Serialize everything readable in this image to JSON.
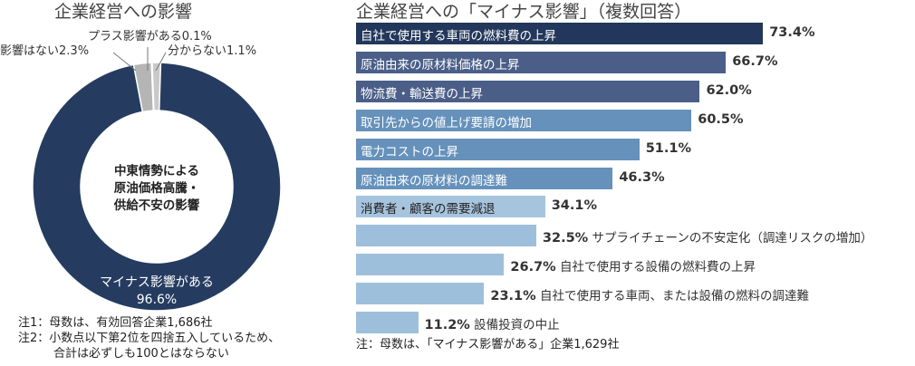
{
  "chart_data": [
    {
      "type": "pie",
      "title": "企業経営への影響",
      "center_label": [
        "中東情勢による",
        "原油価格高騰・",
        "供給不安の影響"
      ],
      "slices": [
        {
          "label": "マイナス影響がある",
          "value": 96.6,
          "display": "96.6%",
          "color": "#253c60"
        },
        {
          "label": "影響はない",
          "value": 2.3,
          "display": "2.3%",
          "color": "#b5b5b5"
        },
        {
          "label": "プラス影響がある",
          "value": 0.1,
          "display": "0.1%",
          "color": "#999999"
        },
        {
          "label": "分からない",
          "value": 1.1,
          "display": "1.1%",
          "color": "#c9c9c9"
        }
      ],
      "notes": [
        "注1：母数は、有効回答企業1,686社",
        "注2：小数点以下第2位を四捨五入しているため、",
        "合計は必ずしも100とはならない"
      ]
    },
    {
      "type": "bar",
      "orientation": "horizontal",
      "title": "企業経営への「マイナス影響」（複数回答）",
      "categories": [
        "自社で使用する車両の燃料費の上昇",
        "原油由来の原材料価格の上昇",
        "物流費・輸送費の上昇",
        "取引先からの値上げ要請の増加",
        "電力コストの上昇",
        "原油由来の原材料の調達難",
        "消費者・顧客の需要減退",
        "サプライチェーンの不安定化（調達リスクの増加）",
        "自社で使用する設備の燃料費の上昇",
        "自社で使用する車両、または設備の燃料の調達難",
        "設備投資の中止"
      ],
      "values": [
        73.4,
        66.7,
        62.0,
        60.5,
        51.1,
        46.3,
        34.1,
        32.5,
        26.7,
        23.1,
        11.2
      ],
      "labels": [
        "73.4%",
        "66.7%",
        "62.0%",
        "60.5%",
        "51.1%",
        "46.3%",
        "34.1%",
        "32.5%",
        "26.7%",
        "23.1%",
        "11.2%"
      ],
      "colors": [
        "#22375b",
        "#4a5e88",
        "#4a5e88",
        "#6591bb",
        "#6591bb",
        "#6591bb",
        "#a7c4de",
        "#9ebfdc",
        "#9ebfdc",
        "#9ebfdc",
        "#9ebfdc"
      ],
      "label_inside": [
        true,
        true,
        true,
        true,
        true,
        true,
        true,
        false,
        false,
        false,
        false
      ],
      "xlim": [
        0,
        100
      ],
      "note": "注：母数は、「マイナス影響がある」企業1,629社"
    }
  ]
}
